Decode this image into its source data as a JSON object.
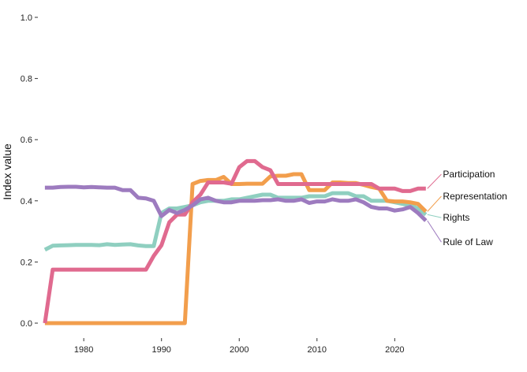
{
  "chart_data": {
    "type": "line",
    "title": "",
    "xlabel": "",
    "ylabel": "Index value",
    "xlim": [
      1974.3,
      2036
    ],
    "ylim": [
      -0.04,
      1.04
    ],
    "x_ticks": [
      1980,
      1990,
      2000,
      2010,
      2020
    ],
    "y_ticks": [
      0.0,
      0.2,
      0.4,
      0.6,
      0.8,
      1.0
    ],
    "y_tick_labels": [
      "0.0",
      "0.2",
      "0.4",
      "0.6",
      "0.8",
      "1.0"
    ],
    "grid": false,
    "legend": "direct labels at right end of lines",
    "series": [
      {
        "name": "Rights",
        "color": "#8fcfc0",
        "label_y": 0.345,
        "points": [
          [
            1975,
            0.24
          ],
          [
            1976,
            0.253
          ],
          [
            1977,
            0.254
          ],
          [
            1978,
            0.255
          ],
          [
            1979,
            0.256
          ],
          [
            1980,
            0.256
          ],
          [
            1981,
            0.256
          ],
          [
            1982,
            0.255
          ],
          [
            1983,
            0.258
          ],
          [
            1984,
            0.256
          ],
          [
            1985,
            0.257
          ],
          [
            1986,
            0.258
          ],
          [
            1987,
            0.254
          ],
          [
            1988,
            0.252
          ],
          [
            1989,
            0.252
          ],
          [
            1990,
            0.36
          ],
          [
            1991,
            0.375
          ],
          [
            1992,
            0.375
          ],
          [
            1993,
            0.38
          ],
          [
            1994,
            0.385
          ],
          [
            1995,
            0.395
          ],
          [
            1996,
            0.4
          ],
          [
            1997,
            0.4
          ],
          [
            1998,
            0.4
          ],
          [
            1999,
            0.405
          ],
          [
            2000,
            0.405
          ],
          [
            2001,
            0.41
          ],
          [
            2002,
            0.415
          ],
          [
            2003,
            0.42
          ],
          [
            2004,
            0.42
          ],
          [
            2005,
            0.41
          ],
          [
            2006,
            0.41
          ],
          [
            2007,
            0.41
          ],
          [
            2008,
            0.41
          ],
          [
            2009,
            0.415
          ],
          [
            2010,
            0.415
          ],
          [
            2011,
            0.415
          ],
          [
            2012,
            0.425
          ],
          [
            2013,
            0.425
          ],
          [
            2014,
            0.425
          ],
          [
            2015,
            0.415
          ],
          [
            2016,
            0.415
          ],
          [
            2017,
            0.4
          ],
          [
            2018,
            0.4
          ],
          [
            2019,
            0.4
          ],
          [
            2020,
            0.395
          ],
          [
            2021,
            0.39
          ],
          [
            2022,
            0.385
          ],
          [
            2023,
            0.375
          ],
          [
            2024,
            0.355
          ]
        ]
      },
      {
        "name": "Representation",
        "color": "#f29e4c",
        "label_y": 0.415,
        "points": [
          [
            1975,
            0.0
          ],
          [
            1976,
            0.0
          ],
          [
            1977,
            0.0
          ],
          [
            1978,
            0.0
          ],
          [
            1979,
            0.0
          ],
          [
            1980,
            0.0
          ],
          [
            1981,
            0.0
          ],
          [
            1982,
            0.0
          ],
          [
            1983,
            0.0
          ],
          [
            1984,
            0.0
          ],
          [
            1985,
            0.0
          ],
          [
            1986,
            0.0
          ],
          [
            1987,
            0.0
          ],
          [
            1988,
            0.0
          ],
          [
            1989,
            0.0
          ],
          [
            1990,
            0.0
          ],
          [
            1991,
            0.0
          ],
          [
            1992,
            0.0
          ],
          [
            1993,
            0.0
          ],
          [
            1994,
            0.455
          ],
          [
            1995,
            0.465
          ],
          [
            1996,
            0.468
          ],
          [
            1997,
            0.468
          ],
          [
            1998,
            0.478
          ],
          [
            1999,
            0.455
          ],
          [
            2000,
            0.455
          ],
          [
            2001,
            0.456
          ],
          [
            2002,
            0.456
          ],
          [
            2003,
            0.456
          ],
          [
            2004,
            0.48
          ],
          [
            2005,
            0.482
          ],
          [
            2006,
            0.482
          ],
          [
            2007,
            0.487
          ],
          [
            2008,
            0.487
          ],
          [
            2009,
            0.435
          ],
          [
            2010,
            0.435
          ],
          [
            2011,
            0.435
          ],
          [
            2012,
            0.46
          ],
          [
            2013,
            0.46
          ],
          [
            2014,
            0.458
          ],
          [
            2015,
            0.458
          ],
          [
            2016,
            0.452
          ],
          [
            2017,
            0.445
          ],
          [
            2018,
            0.44
          ],
          [
            2019,
            0.4
          ],
          [
            2020,
            0.398
          ],
          [
            2021,
            0.398
          ],
          [
            2022,
            0.395
          ],
          [
            2023,
            0.39
          ],
          [
            2024,
            0.365
          ]
        ]
      },
      {
        "name": "Participation",
        "color": "#e06a8f",
        "label_y": 0.487,
        "points": [
          [
            1975,
            0.0
          ],
          [
            1976,
            0.175
          ],
          [
            1977,
            0.175
          ],
          [
            1978,
            0.175
          ],
          [
            1979,
            0.175
          ],
          [
            1980,
            0.175
          ],
          [
            1981,
            0.175
          ],
          [
            1982,
            0.175
          ],
          [
            1983,
            0.175
          ],
          [
            1984,
            0.175
          ],
          [
            1985,
            0.175
          ],
          [
            1986,
            0.175
          ],
          [
            1987,
            0.175
          ],
          [
            1988,
            0.175
          ],
          [
            1989,
            0.22
          ],
          [
            1990,
            0.255
          ],
          [
            1991,
            0.33
          ],
          [
            1992,
            0.355
          ],
          [
            1993,
            0.355
          ],
          [
            1994,
            0.395
          ],
          [
            1995,
            0.42
          ],
          [
            1996,
            0.46
          ],
          [
            1997,
            0.46
          ],
          [
            1998,
            0.46
          ],
          [
            1999,
            0.456
          ],
          [
            2000,
            0.51
          ],
          [
            2001,
            0.53
          ],
          [
            2002,
            0.53
          ],
          [
            2003,
            0.51
          ],
          [
            2004,
            0.5
          ],
          [
            2005,
            0.455
          ],
          [
            2006,
            0.455
          ],
          [
            2007,
            0.455
          ],
          [
            2008,
            0.455
          ],
          [
            2009,
            0.455
          ],
          [
            2010,
            0.455
          ],
          [
            2011,
            0.455
          ],
          [
            2012,
            0.455
          ],
          [
            2013,
            0.455
          ],
          [
            2014,
            0.455
          ],
          [
            2015,
            0.455
          ],
          [
            2016,
            0.455
          ],
          [
            2017,
            0.455
          ],
          [
            2018,
            0.44
          ],
          [
            2019,
            0.44
          ],
          [
            2020,
            0.44
          ],
          [
            2021,
            0.432
          ],
          [
            2022,
            0.432
          ],
          [
            2023,
            0.44
          ],
          [
            2024,
            0.44
          ]
        ]
      },
      {
        "name": "Rule of Law",
        "color": "#9d7bbf",
        "label_y": 0.265,
        "points": [
          [
            1975,
            0.443
          ],
          [
            1976,
            0.443
          ],
          [
            1977,
            0.445
          ],
          [
            1978,
            0.446
          ],
          [
            1979,
            0.446
          ],
          [
            1980,
            0.444
          ],
          [
            1981,
            0.445
          ],
          [
            1982,
            0.444
          ],
          [
            1983,
            0.443
          ],
          [
            1984,
            0.443
          ],
          [
            1985,
            0.435
          ],
          [
            1986,
            0.435
          ],
          [
            1987,
            0.41
          ],
          [
            1988,
            0.408
          ],
          [
            1989,
            0.4
          ],
          [
            1990,
            0.35
          ],
          [
            1991,
            0.37
          ],
          [
            1992,
            0.36
          ],
          [
            1993,
            0.37
          ],
          [
            1994,
            0.385
          ],
          [
            1995,
            0.405
          ],
          [
            1996,
            0.41
          ],
          [
            1997,
            0.4
          ],
          [
            1998,
            0.395
          ],
          [
            1999,
            0.395
          ],
          [
            2000,
            0.4
          ],
          [
            2001,
            0.4
          ],
          [
            2002,
            0.4
          ],
          [
            2003,
            0.402
          ],
          [
            2004,
            0.402
          ],
          [
            2005,
            0.405
          ],
          [
            2006,
            0.4
          ],
          [
            2007,
            0.4
          ],
          [
            2008,
            0.405
          ],
          [
            2009,
            0.393
          ],
          [
            2010,
            0.398
          ],
          [
            2011,
            0.398
          ],
          [
            2012,
            0.405
          ],
          [
            2013,
            0.4
          ],
          [
            2014,
            0.4
          ],
          [
            2015,
            0.405
          ],
          [
            2016,
            0.395
          ],
          [
            2017,
            0.38
          ],
          [
            2018,
            0.375
          ],
          [
            2019,
            0.375
          ],
          [
            2020,
            0.368
          ],
          [
            2021,
            0.372
          ],
          [
            2022,
            0.38
          ],
          [
            2023,
            0.36
          ],
          [
            2024,
            0.335
          ]
        ]
      }
    ]
  }
}
